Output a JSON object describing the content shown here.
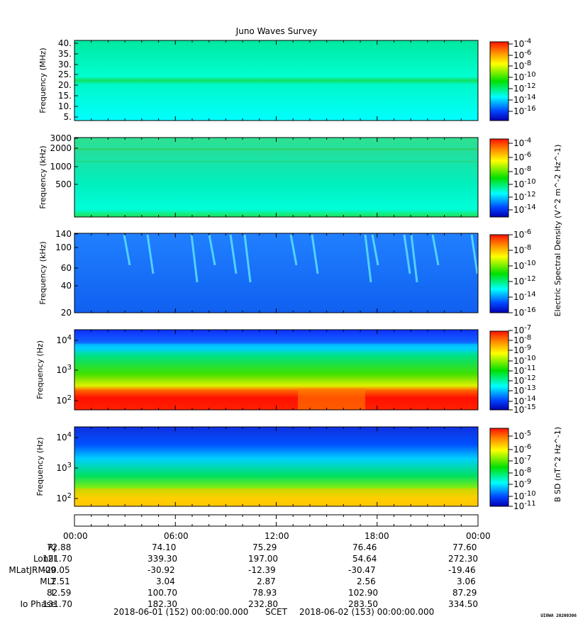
{
  "chart_data": [
    {
      "type": "heatmap",
      "title": "Juno Waves Survey",
      "ylabel": "Frequency (MHz)",
      "yticks": [
        "40.",
        "35.",
        "30.",
        "25.",
        "20.",
        "15.",
        "10.",
        "5."
      ],
      "colorbar": {
        "ticks": [
          "10^-4",
          "10^-6",
          "10^-8",
          "10^-10",
          "10^-12",
          "10^-14",
          "10^-16"
        ]
      },
      "dominant": "cyan-green background with a green band near 21 MHz"
    },
    {
      "type": "heatmap",
      "ylabel": "Frequency (kHz)",
      "yticks": [
        "3000",
        "2000",
        "1000",
        "500"
      ],
      "colorbar": {
        "ticks": [
          "10^-4",
          "10^-6",
          "10^-8",
          "10^-10",
          "10^-12",
          "10^-14"
        ],
        "label": "Electric Spectral Density (V^2 m^-2 Hz^-1)"
      }
    },
    {
      "type": "heatmap",
      "ylabel": "Frequency (kHz)",
      "yticks": [
        "140",
        "100",
        "60",
        "40",
        "20"
      ],
      "colorbar": {
        "ticks": [
          "10^-6",
          "10^-8",
          "10^-10",
          "10^-12",
          "10^-14",
          "10^-16"
        ]
      }
    },
    {
      "type": "heatmap",
      "ylabel": "Frequency (Hz)",
      "yticks": [
        "10^4",
        "10^3",
        "10^2"
      ],
      "colorbar": {
        "ticks": [
          "10^-7",
          "10^-8",
          "10^-9",
          "10^-10",
          "10^-11",
          "10^-12",
          "10^-13",
          "10^-14",
          "10^-15"
        ]
      }
    },
    {
      "type": "heatmap",
      "ylabel": "Frequency (Hz)",
      "yticks": [
        "10^4",
        "10^3",
        "10^2"
      ],
      "colorbar": {
        "ticks": [
          "10^-5",
          "10^-6",
          "10^-7",
          "10^-8",
          "10^-9",
          "10^-10",
          "10^-11"
        ],
        "label": "B SD (nT^2 Hz^-1)"
      }
    }
  ],
  "title": "Juno Waves Survey",
  "time_ticks": [
    "00:00",
    "06:00",
    "12:00",
    "18:00",
    "00:00"
  ],
  "ephemeris": {
    "labels": [
      "Rj",
      "LonIII",
      "MLatJRM09",
      "MLT",
      "L",
      "Io Phase"
    ],
    "rows": [
      [
        "72.88",
        "74.10",
        "75.29",
        "76.46",
        "77.60"
      ],
      [
        "121.70",
        "339.30",
        "197.00",
        "54.64",
        "272.30"
      ],
      [
        "-20.05",
        "-30.92",
        "-12.39",
        "-30.47",
        "-19.46"
      ],
      [
        "2.51",
        "3.04",
        "2.87",
        "2.56",
        "3.06"
      ],
      [
        "82.59",
        "100.70",
        "78.93",
        "102.90",
        "87.29"
      ],
      [
        "131.70",
        "182.30",
        "232.80",
        "283.50",
        "334.50"
      ]
    ]
  },
  "footer": {
    "start": "2018-06-01 (152) 00:00:00.000",
    "scet": "SCET",
    "end": "2018-06-02 (153) 00:00:00.000"
  },
  "stamp": "UIOWA 20200306",
  "colors": {
    "red": "#ff2000",
    "yellow": "#ffff00",
    "green": "#00e000",
    "cyan": "#00ffff",
    "blue": "#0044ff",
    "navy": "#0000b0"
  }
}
